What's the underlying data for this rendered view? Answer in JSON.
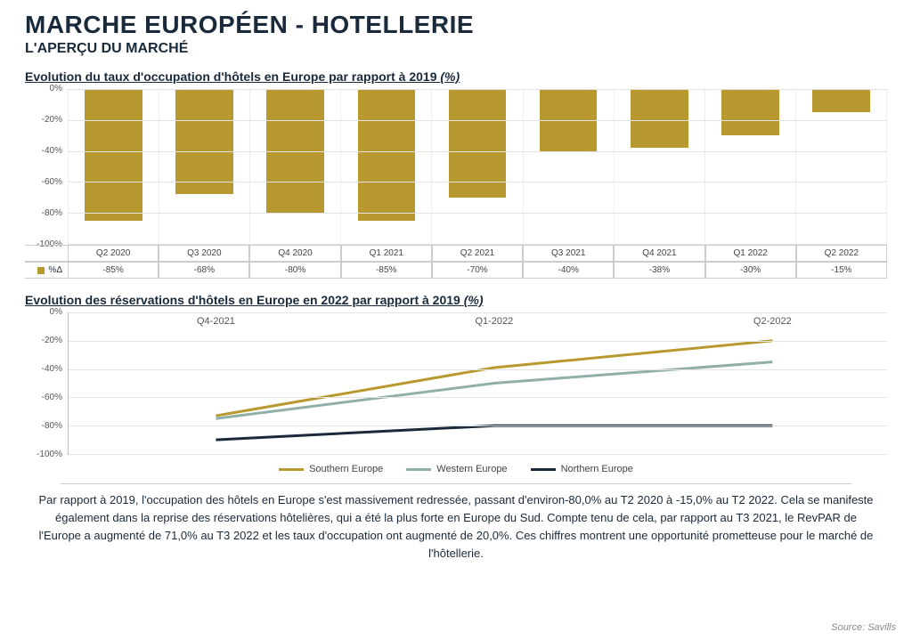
{
  "header": {
    "title": "MARCHE EUROPÉEN - HOTELLERIE",
    "subtitle": "L'APERÇU DU MARCHÉ"
  },
  "bar_chart": {
    "type": "bar",
    "title_main": "Evolution du taux d'occupation d'hôtels en Europe par rapport à 2019 ",
    "title_unit": "(%)",
    "categories": [
      "Q2 2020",
      "Q3 2020",
      "Q4 2020",
      "Q1 2021",
      "Q2 2021",
      "Q3 2021",
      "Q4 2021",
      "Q1 2022",
      "Q2 2022"
    ],
    "values": [
      -85,
      -68,
      -80,
      -85,
      -70,
      -40,
      -38,
      -30,
      -15
    ],
    "value_labels": [
      "-85%",
      "-68%",
      "-80%",
      "-85%",
      "-70%",
      "-40%",
      "-38%",
      "-30%",
      "-15%"
    ],
    "row_label": "%Δ",
    "bar_color": "#b8992f",
    "ymin": -100,
    "ymax": 0,
    "ystep": 20,
    "yticks": [
      "0%",
      "-20%",
      "-40%",
      "-60%",
      "-80%",
      "-100%"
    ],
    "grid_color": "#e3e3e3",
    "background": "#ffffff"
  },
  "line_chart": {
    "type": "line",
    "title_main": "Evolution des réservations d'hôtels en Europe en 2022 par rapport à 2019 ",
    "title_unit": "(%)",
    "x_labels": [
      "Q4-2021",
      "Q1-2022",
      "Q2-2022"
    ],
    "x_positions_pct": [
      18,
      52,
      86
    ],
    "ymin": -100,
    "ymax": 0,
    "ystep": 20,
    "yticks": [
      "0%",
      "-20%",
      "-40%",
      "-60%",
      "-80%",
      "-100%"
    ],
    "grid_color": "#e3e3e3",
    "series": [
      {
        "name": "Southern Europe",
        "color": "#b8992f",
        "values": [
          -73,
          -39,
          -20
        ],
        "width": 3
      },
      {
        "name": "Western Europe",
        "color": "#91afa9",
        "values": [
          -75,
          -50,
          -35
        ],
        "width": 3
      },
      {
        "name": "Northern Europe",
        "color": "#1a2a3a",
        "values": [
          -90,
          -80,
          -80
        ],
        "width": 3
      }
    ]
  },
  "paragraph": "Par rapport à 2019, l'occupation des hôtels en Europe s'est massivement redressée, passant d'environ-80,0% au T2 2020 à -15,0% au T2 2022. Cela se manifeste également dans la reprise des réservations hôtelières, qui a été la plus forte en Europe du Sud. Compte tenu de cela, par rapport au T3 2021, le RevPAR de l'Europe a augmenté de 71,0% au T3 2022 et les taux d'occupation ont augmenté de 20,0%. Ces chiffres montrent une opportunité prometteuse pour le marché de l'hôtellerie.",
  "source": "Source: Savills"
}
